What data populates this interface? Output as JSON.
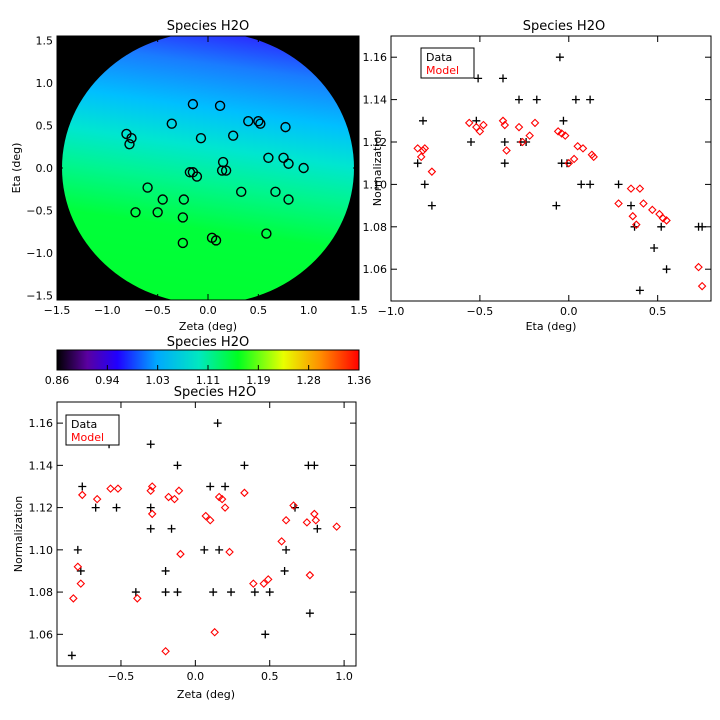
{
  "colors": {
    "data": "#000000",
    "model": "#ff0000",
    "background": "#ffffff"
  },
  "chart_data": [
    {
      "type": "heatmap",
      "title": "Species H2O",
      "xlabel": "Zeta (deg)",
      "ylabel": "Eta (deg)",
      "xlim": [
        -1.5,
        1.5
      ],
      "ylim": [
        -1.55,
        1.55
      ],
      "xticks": [
        "−1.5",
        "−1.0",
        "−0.5",
        "0.0",
        "0.5",
        "1.0",
        "1.5"
      ],
      "yticks": [
        "−1.5",
        "−1.0",
        "−0.5",
        "0.0",
        "0.5",
        "1.0",
        "1.5"
      ],
      "field_radius_deg": 1.45,
      "grid": false,
      "stations": [
        [
          -0.81,
          0.4
        ],
        [
          -0.76,
          0.35
        ],
        [
          -0.78,
          0.28
        ],
        [
          -0.36,
          0.52
        ],
        [
          -0.15,
          0.75
        ],
        [
          0.12,
          0.73
        ],
        [
          -0.07,
          0.35
        ],
        [
          0.25,
          0.38
        ],
        [
          0.4,
          0.55
        ],
        [
          0.5,
          0.55
        ],
        [
          0.52,
          0.52
        ],
        [
          0.77,
          0.48
        ],
        [
          -0.18,
          -0.05
        ],
        [
          -0.15,
          -0.05
        ],
        [
          -0.11,
          -0.1
        ],
        [
          0.15,
          0.07
        ],
        [
          0.18,
          -0.03
        ],
        [
          0.14,
          -0.03
        ],
        [
          0.6,
          0.12
        ],
        [
          0.75,
          0.12
        ],
        [
          0.8,
          0.05
        ],
        [
          0.95,
          0.0
        ],
        [
          -0.6,
          -0.23
        ],
        [
          -0.72,
          -0.52
        ],
        [
          -0.45,
          -0.37
        ],
        [
          -0.5,
          -0.52
        ],
        [
          -0.24,
          -0.37
        ],
        [
          -0.25,
          -0.58
        ],
        [
          -0.25,
          -0.88
        ],
        [
          0.04,
          -0.82
        ],
        [
          0.08,
          -0.85
        ],
        [
          0.33,
          -0.28
        ],
        [
          0.67,
          -0.28
        ],
        [
          0.8,
          -0.37
        ],
        [
          0.58,
          -0.77
        ]
      ]
    },
    {
      "type": "scatter",
      "title": "Species H2O",
      "xlabel": "Eta (deg)",
      "ylabel": "Normalization",
      "xlim": [
        -1.0,
        0.8
      ],
      "ylim": [
        1.045,
        1.17
      ],
      "xticks": [
        "−1.0",
        "−0.5",
        "0.0",
        "0.5"
      ],
      "yticks": [
        "1.06",
        "1.08",
        "1.10",
        "1.12",
        "1.14",
        "1.16"
      ],
      "legend": {
        "position": "top-left",
        "entries": [
          "Data",
          "Model"
        ]
      },
      "series": [
        {
          "name": "Data",
          "marker": "plus",
          "points": [
            [
              -0.85,
              1.11
            ],
            [
              -0.82,
              1.13
            ],
            [
              -0.81,
              1.1
            ],
            [
              -0.77,
              1.09
            ],
            [
              -0.55,
              1.12
            ],
            [
              -0.52,
              1.13
            ],
            [
              -0.51,
              1.15
            ],
            [
              -0.37,
              1.15
            ],
            [
              -0.36,
              1.11
            ],
            [
              -0.36,
              1.12
            ],
            [
              -0.28,
              1.14
            ],
            [
              -0.27,
              1.12
            ],
            [
              -0.24,
              1.12
            ],
            [
              -0.18,
              1.14
            ],
            [
              -0.07,
              1.09
            ],
            [
              -0.05,
              1.16
            ],
            [
              -0.04,
              1.11
            ],
            [
              -0.03,
              1.13
            ],
            [
              -0.01,
              1.11
            ],
            [
              0.04,
              1.14
            ],
            [
              0.07,
              1.1
            ],
            [
              0.12,
              1.1
            ],
            [
              0.12,
              1.14
            ],
            [
              0.28,
              1.1
            ],
            [
              0.35,
              1.09
            ],
            [
              0.37,
              1.08
            ],
            [
              0.4,
              1.05
            ],
            [
              0.48,
              1.07
            ],
            [
              0.52,
              1.08
            ],
            [
              0.55,
              1.06
            ],
            [
              0.73,
              1.08
            ],
            [
              0.75,
              1.08
            ]
          ]
        },
        {
          "name": "Model",
          "marker": "diamond",
          "points": [
            [
              -0.85,
              1.117
            ],
            [
              -0.83,
              1.113
            ],
            [
              -0.82,
              1.116
            ],
            [
              -0.81,
              1.117
            ],
            [
              -0.77,
              1.106
            ],
            [
              -0.56,
              1.129
            ],
            [
              -0.52,
              1.127
            ],
            [
              -0.5,
              1.125
            ],
            [
              -0.48,
              1.128
            ],
            [
              -0.37,
              1.13
            ],
            [
              -0.36,
              1.128
            ],
            [
              -0.35,
              1.116
            ],
            [
              -0.28,
              1.127
            ],
            [
              -0.26,
              1.12
            ],
            [
              -0.22,
              1.123
            ],
            [
              -0.19,
              1.129
            ],
            [
              -0.06,
              1.125
            ],
            [
              -0.04,
              1.124
            ],
            [
              -0.02,
              1.123
            ],
            [
              0.0,
              1.11
            ],
            [
              0.03,
              1.112
            ],
            [
              0.05,
              1.118
            ],
            [
              0.08,
              1.117
            ],
            [
              0.13,
              1.114
            ],
            [
              0.14,
              1.113
            ],
            [
              0.28,
              1.091
            ],
            [
              0.35,
              1.098
            ],
            [
              0.36,
              1.085
            ],
            [
              0.38,
              1.081
            ],
            [
              0.4,
              1.098
            ],
            [
              0.42,
              1.091
            ],
            [
              0.47,
              1.088
            ],
            [
              0.51,
              1.086
            ],
            [
              0.53,
              1.084
            ],
            [
              0.55,
              1.083
            ],
            [
              0.73,
              1.061
            ],
            [
              0.75,
              1.052
            ]
          ]
        }
      ]
    },
    {
      "type": "colorbar",
      "title": "Species H2O",
      "range": [
        0.86,
        1.36
      ],
      "tick_labels": [
        "0.86",
        "0.94",
        "1.03",
        "1.11",
        "1.19",
        "1.28",
        "1.36"
      ]
    },
    {
      "type": "scatter",
      "title": "Species H2O",
      "xlabel": "Zeta (deg)",
      "ylabel": "Normalization",
      "xlim": [
        -0.93,
        1.08
      ],
      "ylim": [
        1.045,
        1.17
      ],
      "xticks": [
        "−0.5",
        "0.0",
        "0.5",
        "1.0"
      ],
      "yticks": [
        "1.06",
        "1.08",
        "1.10",
        "1.12",
        "1.14",
        "1.16"
      ],
      "legend": {
        "position": "top-left",
        "entries": [
          "Data",
          "Model"
        ]
      },
      "series": [
        {
          "name": "Data",
          "marker": "plus",
          "points": [
            [
              -0.83,
              1.05
            ],
            [
              -0.79,
              1.1
            ],
            [
              -0.76,
              1.13
            ],
            [
              -0.77,
              1.09
            ],
            [
              -0.67,
              1.12
            ],
            [
              -0.58,
              1.15
            ],
            [
              -0.53,
              1.12
            ],
            [
              -0.4,
              1.08
            ],
            [
              -0.3,
              1.15
            ],
            [
              -0.3,
              1.12
            ],
            [
              -0.3,
              1.11
            ],
            [
              -0.2,
              1.08
            ],
            [
              -0.2,
              1.09
            ],
            [
              -0.16,
              1.11
            ],
            [
              -0.12,
              1.14
            ],
            [
              -0.12,
              1.08
            ],
            [
              0.06,
              1.1
            ],
            [
              0.1,
              1.13
            ],
            [
              0.12,
              1.08
            ],
            [
              0.15,
              1.16
            ],
            [
              0.16,
              1.1
            ],
            [
              0.2,
              1.13
            ],
            [
              0.24,
              1.08
            ],
            [
              0.33,
              1.14
            ],
            [
              0.4,
              1.08
            ],
            [
              0.47,
              1.06
            ],
            [
              0.5,
              1.08
            ],
            [
              0.6,
              1.09
            ],
            [
              0.61,
              1.1
            ],
            [
              0.67,
              1.12
            ],
            [
              0.76,
              1.14
            ],
            [
              0.77,
              1.07
            ],
            [
              0.8,
              1.14
            ],
            [
              0.82,
              1.11
            ]
          ]
        },
        {
          "name": "Model",
          "marker": "diamond",
          "points": [
            [
              -0.82,
              1.077
            ],
            [
              -0.79,
              1.092
            ],
            [
              -0.77,
              1.084
            ],
            [
              -0.76,
              1.126
            ],
            [
              -0.66,
              1.124
            ],
            [
              -0.57,
              1.129
            ],
            [
              -0.52,
              1.129
            ],
            [
              -0.39,
              1.077
            ],
            [
              -0.3,
              1.128
            ],
            [
              -0.29,
              1.13
            ],
            [
              -0.29,
              1.117
            ],
            [
              -0.2,
              1.052
            ],
            [
              -0.18,
              1.125
            ],
            [
              -0.14,
              1.124
            ],
            [
              -0.11,
              1.128
            ],
            [
              -0.1,
              1.098
            ],
            [
              0.07,
              1.116
            ],
            [
              0.1,
              1.114
            ],
            [
              0.13,
              1.061
            ],
            [
              0.16,
              1.125
            ],
            [
              0.18,
              1.124
            ],
            [
              0.2,
              1.12
            ],
            [
              0.23,
              1.099
            ],
            [
              0.33,
              1.127
            ],
            [
              0.39,
              1.084
            ],
            [
              0.46,
              1.084
            ],
            [
              0.49,
              1.086
            ],
            [
              0.58,
              1.104
            ],
            [
              0.61,
              1.114
            ],
            [
              0.66,
              1.121
            ],
            [
              0.75,
              1.113
            ],
            [
              0.77,
              1.088
            ],
            [
              0.8,
              1.117
            ],
            [
              0.81,
              1.114
            ],
            [
              0.95,
              1.111
            ]
          ]
        }
      ]
    }
  ]
}
